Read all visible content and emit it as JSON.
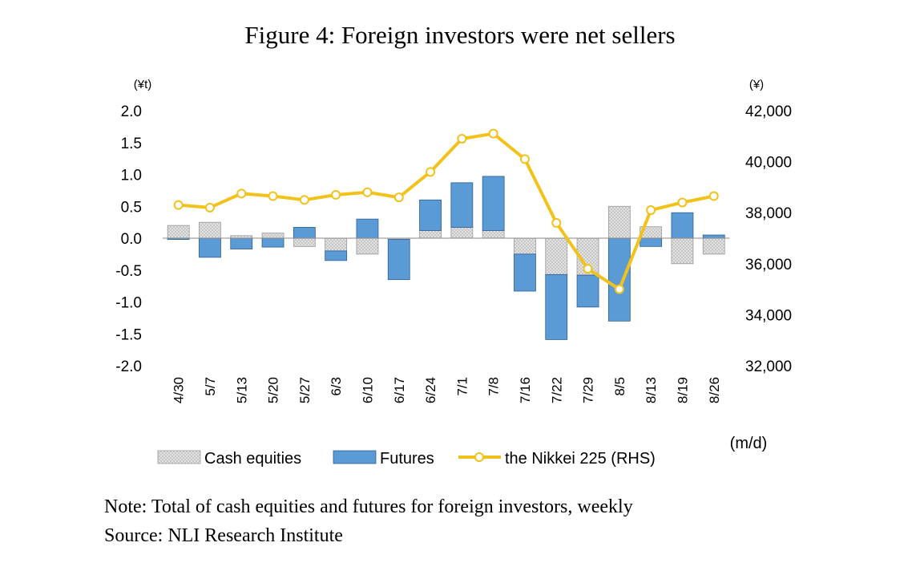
{
  "title": "Figure 4: Foreign investors were net sellers",
  "note": "Note: Total of cash equities and futures for foreign investors, weekly",
  "source": "Source: NLI Research Institute",
  "chart_data": {
    "type": "bar",
    "categories": [
      "4/30",
      "5/7",
      "5/13",
      "5/20",
      "5/27",
      "6/3",
      "6/10",
      "6/17",
      "6/24",
      "7/1",
      "7/8",
      "7/16",
      "7/22",
      "7/29",
      "8/5",
      "8/13",
      "8/19",
      "8/26"
    ],
    "series": [
      {
        "name": "Cash equities",
        "type": "bar",
        "axis": "left",
        "values": [
          0.2,
          0.25,
          0.04,
          0.08,
          -0.13,
          -0.2,
          -0.25,
          -0.02,
          0.12,
          0.17,
          0.12,
          -0.25,
          -0.57,
          -0.58,
          0.5,
          0.18,
          -0.4,
          -0.25
        ]
      },
      {
        "name": "Futures",
        "type": "bar",
        "axis": "left",
        "values": [
          -0.02,
          -0.3,
          -0.17,
          -0.14,
          0.17,
          -0.15,
          0.3,
          -0.63,
          0.48,
          0.7,
          0.85,
          -0.58,
          -1.02,
          -0.5,
          -1.3,
          -0.13,
          0.4,
          0.05
        ]
      },
      {
        "name": "the Nikkei 225 (RHS)",
        "type": "line",
        "axis": "right",
        "values": [
          38300,
          38200,
          38750,
          38650,
          38500,
          38700,
          38800,
          38600,
          39600,
          40900,
          41100,
          40100,
          37600,
          35800,
          35000,
          38100,
          38400,
          38650
        ]
      }
    ],
    "left_axis": {
      "unit": "(¥t)",
      "min": -2.0,
      "max": 2.0,
      "ticks": [
        "2.0",
        "1.5",
        "1.0",
        "0.5",
        "0.0",
        "-0.5",
        "-1.0",
        "-1.5",
        "-2.0"
      ]
    },
    "right_axis": {
      "unit": "(¥)",
      "min": 32000,
      "max": 42000,
      "ticks": [
        "42,000",
        "40,000",
        "38,000",
        "36,000",
        "34,000",
        "32,000"
      ]
    },
    "xlabel": "(m/d)",
    "legend_position": "bottom",
    "colors": {
      "cash_equities": "#b3b3b3",
      "futures": "#5b9bd5",
      "nikkei": "#f2c21b"
    },
    "stacked": true,
    "grid": false
  }
}
